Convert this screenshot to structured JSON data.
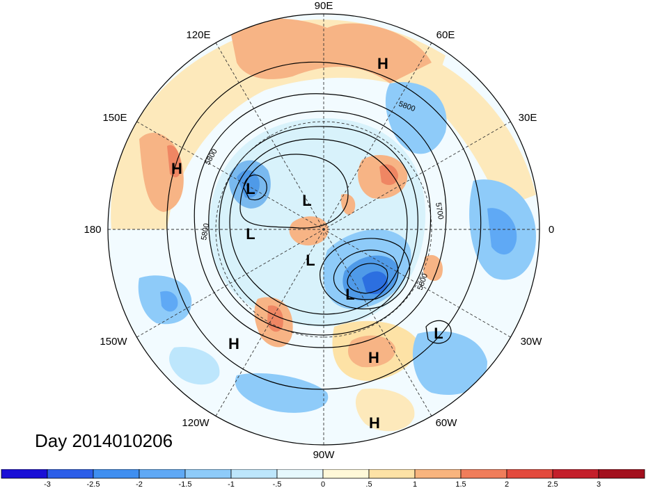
{
  "title": "Day 2014010206",
  "longitude_labels": {
    "top": "90E",
    "upper_left_1": "120E",
    "upper_right_1": "60E",
    "upper_left_2": "150E",
    "upper_right_2": "30E",
    "left": "180",
    "right": "0",
    "lower_left_2": "150W",
    "lower_right_2": "30W",
    "lower_left_1": "120W",
    "lower_right_1": "60W",
    "bottom": "90W"
  },
  "pressure_centers": [
    {
      "type": "H",
      "name": "high-center-north"
    },
    {
      "type": "H",
      "name": "high-center-west"
    },
    {
      "type": "L",
      "name": "low-center-1"
    },
    {
      "type": "L",
      "name": "low-center-2"
    },
    {
      "type": "L",
      "name": "low-center-3"
    },
    {
      "type": "L",
      "name": "low-center-4"
    },
    {
      "type": "L",
      "name": "low-center-5"
    },
    {
      "type": "H",
      "name": "high-center-southwest"
    },
    {
      "type": "H",
      "name": "high-center-atlantic"
    },
    {
      "type": "L",
      "name": "low-center-atlantic"
    },
    {
      "type": "H",
      "name": "high-center-south"
    }
  ],
  "contour_labels": {
    "c1": "5800",
    "c2": "5800",
    "c3": "5800",
    "c4": "5700",
    "c5": "5800"
  },
  "colorbar": {
    "ticks": [
      "-3",
      "-2.5",
      "-2",
      "-1.5",
      "-1",
      "-.5",
      "0",
      ".5",
      "1",
      "1.5",
      "2",
      "2.5",
      "3"
    ],
    "colors": [
      "#1a0fd6",
      "#2c5ee8",
      "#3f8ff0",
      "#5fa9f5",
      "#8ecbf9",
      "#bde6fc",
      "#e6f8fd",
      "#fff8d8",
      "#fde2a6",
      "#f8b47e",
      "#f07d5a",
      "#e34a3d",
      "#c41f2b",
      "#a3101e"
    ]
  }
}
